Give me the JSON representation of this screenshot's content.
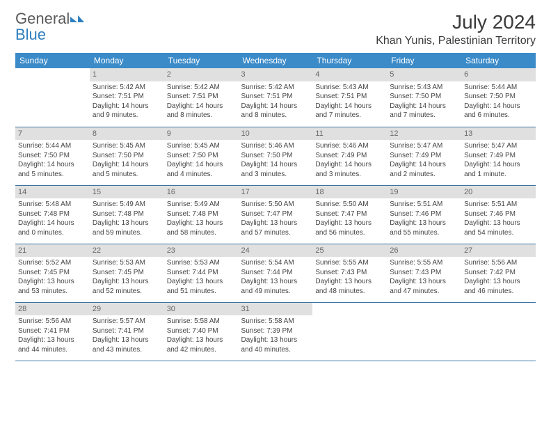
{
  "logo": {
    "word1": "General",
    "word2": "Blue"
  },
  "title": "July 2024",
  "location": "Khan Yunis, Palestinian Territory",
  "colors": {
    "header_bg": "#3b8bc9",
    "header_text": "#ffffff",
    "daybar_bg": "#e0e0e0",
    "daybar_text": "#666666",
    "rule": "#3874a5",
    "body_text": "#444444",
    "logo_gray": "#5a5a5a",
    "logo_blue": "#2f7fbf"
  },
  "weekdays": [
    "Sunday",
    "Monday",
    "Tuesday",
    "Wednesday",
    "Thursday",
    "Friday",
    "Saturday"
  ],
  "weeks": [
    [
      null,
      {
        "n": "1",
        "sunrise": "5:42 AM",
        "sunset": "7:51 PM",
        "daylight": "14 hours and 9 minutes."
      },
      {
        "n": "2",
        "sunrise": "5:42 AM",
        "sunset": "7:51 PM",
        "daylight": "14 hours and 8 minutes."
      },
      {
        "n": "3",
        "sunrise": "5:42 AM",
        "sunset": "7:51 PM",
        "daylight": "14 hours and 8 minutes."
      },
      {
        "n": "4",
        "sunrise": "5:43 AM",
        "sunset": "7:51 PM",
        "daylight": "14 hours and 7 minutes."
      },
      {
        "n": "5",
        "sunrise": "5:43 AM",
        "sunset": "7:50 PM",
        "daylight": "14 hours and 7 minutes."
      },
      {
        "n": "6",
        "sunrise": "5:44 AM",
        "sunset": "7:50 PM",
        "daylight": "14 hours and 6 minutes."
      }
    ],
    [
      {
        "n": "7",
        "sunrise": "5:44 AM",
        "sunset": "7:50 PM",
        "daylight": "14 hours and 5 minutes."
      },
      {
        "n": "8",
        "sunrise": "5:45 AM",
        "sunset": "7:50 PM",
        "daylight": "14 hours and 5 minutes."
      },
      {
        "n": "9",
        "sunrise": "5:45 AM",
        "sunset": "7:50 PM",
        "daylight": "14 hours and 4 minutes."
      },
      {
        "n": "10",
        "sunrise": "5:46 AM",
        "sunset": "7:50 PM",
        "daylight": "14 hours and 3 minutes."
      },
      {
        "n": "11",
        "sunrise": "5:46 AM",
        "sunset": "7:49 PM",
        "daylight": "14 hours and 3 minutes."
      },
      {
        "n": "12",
        "sunrise": "5:47 AM",
        "sunset": "7:49 PM",
        "daylight": "14 hours and 2 minutes."
      },
      {
        "n": "13",
        "sunrise": "5:47 AM",
        "sunset": "7:49 PM",
        "daylight": "14 hours and 1 minute."
      }
    ],
    [
      {
        "n": "14",
        "sunrise": "5:48 AM",
        "sunset": "7:48 PM",
        "daylight": "14 hours and 0 minutes."
      },
      {
        "n": "15",
        "sunrise": "5:49 AM",
        "sunset": "7:48 PM",
        "daylight": "13 hours and 59 minutes."
      },
      {
        "n": "16",
        "sunrise": "5:49 AM",
        "sunset": "7:48 PM",
        "daylight": "13 hours and 58 minutes."
      },
      {
        "n": "17",
        "sunrise": "5:50 AM",
        "sunset": "7:47 PM",
        "daylight": "13 hours and 57 minutes."
      },
      {
        "n": "18",
        "sunrise": "5:50 AM",
        "sunset": "7:47 PM",
        "daylight": "13 hours and 56 minutes."
      },
      {
        "n": "19",
        "sunrise": "5:51 AM",
        "sunset": "7:46 PM",
        "daylight": "13 hours and 55 minutes."
      },
      {
        "n": "20",
        "sunrise": "5:51 AM",
        "sunset": "7:46 PM",
        "daylight": "13 hours and 54 minutes."
      }
    ],
    [
      {
        "n": "21",
        "sunrise": "5:52 AM",
        "sunset": "7:45 PM",
        "daylight": "13 hours and 53 minutes."
      },
      {
        "n": "22",
        "sunrise": "5:53 AM",
        "sunset": "7:45 PM",
        "daylight": "13 hours and 52 minutes."
      },
      {
        "n": "23",
        "sunrise": "5:53 AM",
        "sunset": "7:44 PM",
        "daylight": "13 hours and 51 minutes."
      },
      {
        "n": "24",
        "sunrise": "5:54 AM",
        "sunset": "7:44 PM",
        "daylight": "13 hours and 49 minutes."
      },
      {
        "n": "25",
        "sunrise": "5:55 AM",
        "sunset": "7:43 PM",
        "daylight": "13 hours and 48 minutes."
      },
      {
        "n": "26",
        "sunrise": "5:55 AM",
        "sunset": "7:43 PM",
        "daylight": "13 hours and 47 minutes."
      },
      {
        "n": "27",
        "sunrise": "5:56 AM",
        "sunset": "7:42 PM",
        "daylight": "13 hours and 46 minutes."
      }
    ],
    [
      {
        "n": "28",
        "sunrise": "5:56 AM",
        "sunset": "7:41 PM",
        "daylight": "13 hours and 44 minutes."
      },
      {
        "n": "29",
        "sunrise": "5:57 AM",
        "sunset": "7:41 PM",
        "daylight": "13 hours and 43 minutes."
      },
      {
        "n": "30",
        "sunrise": "5:58 AM",
        "sunset": "7:40 PM",
        "daylight": "13 hours and 42 minutes."
      },
      {
        "n": "31",
        "sunrise": "5:58 AM",
        "sunset": "7:39 PM",
        "daylight": "13 hours and 40 minutes."
      },
      null,
      null,
      null
    ]
  ],
  "labels": {
    "sunrise": "Sunrise: ",
    "sunset": "Sunset: ",
    "daylight": "Daylight: "
  }
}
